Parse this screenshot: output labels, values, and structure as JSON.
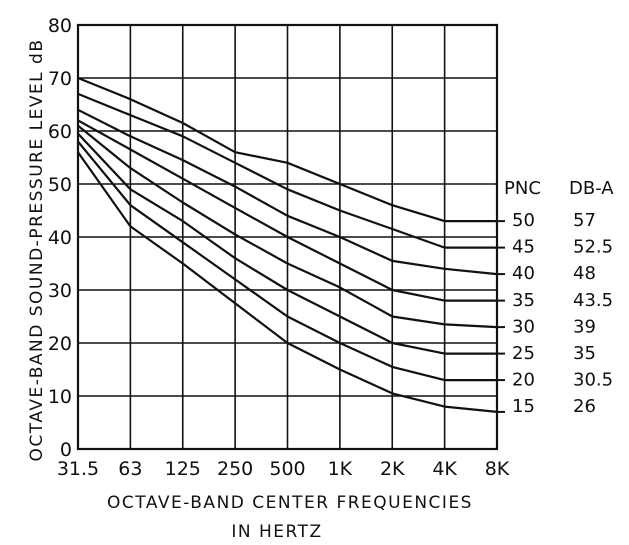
{
  "chart_data": {
    "type": "line",
    "title": "",
    "xlabel": "OCTAVE-BAND CENTER FREQUENCIES",
    "xlabel_line2": "IN HERTZ",
    "ylabel": "OCTAVE-BAND SOUND-PRESSURE LEVEL dB",
    "categories": [
      "31.5",
      "63",
      "125",
      "250",
      "500",
      "1K",
      "2K",
      "4K",
      "8K"
    ],
    "y_ticks": [
      "0",
      "10",
      "20",
      "30",
      "40",
      "50",
      "60",
      "70",
      "80"
    ],
    "ylim": [
      0,
      80
    ],
    "grid": true,
    "legend_placement": "right",
    "legend_headers": {
      "pnc": "PNC",
      "dba": "DB-A"
    },
    "series": [
      {
        "pnc": "50",
        "dba": "57",
        "values": [
          70,
          66,
          61.5,
          56,
          54,
          50,
          46,
          43,
          43
        ]
      },
      {
        "pnc": "45",
        "dba": "52.5",
        "values": [
          67,
          63,
          59,
          54,
          49,
          45,
          41.5,
          38,
          38
        ]
      },
      {
        "pnc": "40",
        "dba": "48",
        "values": [
          64,
          59,
          54.5,
          49.5,
          44,
          40,
          35.5,
          34,
          33
        ]
      },
      {
        "pnc": "35",
        "dba": "43.5",
        "values": [
          62,
          56.5,
          51,
          45.5,
          40,
          35,
          30,
          28,
          28
        ]
      },
      {
        "pnc": "30",
        "dba": "39",
        "values": [
          61,
          53,
          46.5,
          40.5,
          35,
          30.5,
          25,
          23.5,
          23
        ]
      },
      {
        "pnc": "25",
        "dba": "35",
        "values": [
          59.5,
          49,
          43,
          36,
          30,
          25,
          20,
          18,
          18
        ]
      },
      {
        "pnc": "20",
        "dba": "30.5",
        "values": [
          58,
          46,
          39,
          32,
          25,
          20,
          15.5,
          13,
          13
        ]
      },
      {
        "pnc": "15",
        "dba": "26",
        "values": [
          56,
          42,
          35,
          27.5,
          20,
          15,
          10.5,
          8,
          7
        ]
      }
    ]
  }
}
